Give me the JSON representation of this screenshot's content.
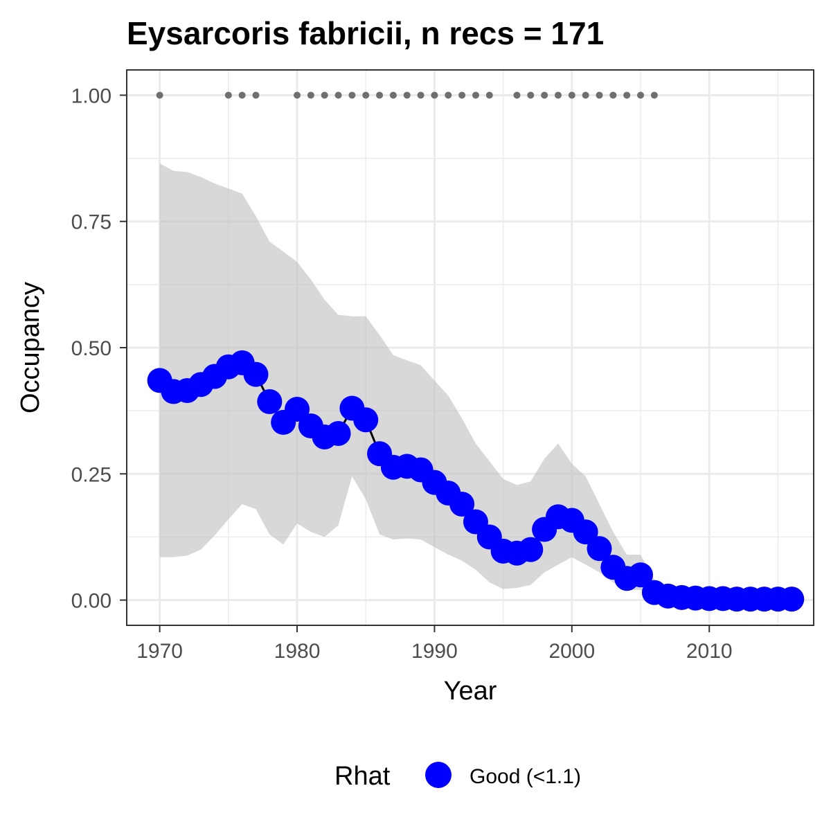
{
  "chart_data": {
    "type": "line",
    "title": "Eysarcoris fabricii, n recs = 171",
    "xlabel": "Year",
    "ylabel": "Occupancy",
    "xlim": [
      1967.6,
      2017.6
    ],
    "ylim": [
      -0.05,
      1.05
    ],
    "x_ticks": [
      1970,
      1980,
      1990,
      2000,
      2010
    ],
    "y_ticks": [
      0.0,
      0.25,
      0.5,
      0.75,
      1.0
    ],
    "y_tick_labels": [
      "0.00",
      "0.25",
      "0.50",
      "0.75",
      "1.00"
    ],
    "grid": true,
    "legend_position": "bottom",
    "colors": {
      "points": "#0000ff",
      "line": "#000000",
      "ribbon": "#bebebe",
      "records": "#6f6f6f",
      "grid": "#ebebeb",
      "border": "#333333"
    },
    "legend": {
      "title": "Rhat",
      "entries": [
        {
          "label": "Good (<1.1)",
          "color": "#0000ff"
        }
      ]
    },
    "years": [
      1970,
      1971,
      1972,
      1973,
      1974,
      1975,
      1976,
      1977,
      1978,
      1979,
      1980,
      1981,
      1982,
      1983,
      1984,
      1985,
      1986,
      1987,
      1988,
      1989,
      1990,
      1991,
      1992,
      1993,
      1994,
      1995,
      1996,
      1997,
      1998,
      1999,
      2000,
      2001,
      2002,
      2003,
      2004,
      2005,
      2006,
      2007,
      2008,
      2009,
      2010,
      2011,
      2012,
      2013,
      2014,
      2015,
      2016
    ],
    "series": [
      {
        "name": "Occupancy",
        "values": [
          0.435,
          0.413,
          0.415,
          0.427,
          0.443,
          0.462,
          0.47,
          0.447,
          0.393,
          0.352,
          0.378,
          0.345,
          0.323,
          0.33,
          0.38,
          0.357,
          0.29,
          0.263,
          0.265,
          0.258,
          0.233,
          0.212,
          0.19,
          0.155,
          0.125,
          0.097,
          0.093,
          0.1,
          0.14,
          0.165,
          0.158,
          0.135,
          0.102,
          0.065,
          0.043,
          0.05,
          0.015,
          0.008,
          0.005,
          0.004,
          0.003,
          0.003,
          0.002,
          0.002,
          0.002,
          0.002,
          0.002
        ]
      }
    ],
    "ci_upper": [
      0.865,
      0.85,
      0.848,
      0.838,
      0.825,
      0.815,
      0.805,
      0.76,
      0.71,
      0.69,
      0.67,
      0.635,
      0.595,
      0.565,
      0.562,
      0.562,
      0.525,
      0.485,
      0.475,
      0.465,
      0.435,
      0.405,
      0.36,
      0.31,
      0.275,
      0.24,
      0.228,
      0.235,
      0.28,
      0.31,
      0.27,
      0.245,
      0.19,
      0.135,
      0.09,
      0.09,
      0.04,
      0.025,
      0.02,
      0.018,
      0.015,
      0.015,
      0.013,
      0.012,
      0.012,
      0.012,
      0.012
    ],
    "ci_lower": [
      0.085,
      0.085,
      0.088,
      0.1,
      0.128,
      0.16,
      0.19,
      0.18,
      0.13,
      0.11,
      0.152,
      0.135,
      0.125,
      0.148,
      0.245,
      0.2,
      0.13,
      0.12,
      0.122,
      0.12,
      0.105,
      0.09,
      0.078,
      0.06,
      0.035,
      0.022,
      0.024,
      0.03,
      0.055,
      0.07,
      0.085,
      0.07,
      0.055,
      0.035,
      0.02,
      0.02,
      0.003,
      0.0,
      0.0,
      0.0,
      0.0,
      0.0,
      0.0,
      0.0,
      0.0,
      0.0,
      0.0
    ],
    "record_years": [
      1970,
      1975,
      1976,
      1977,
      1980,
      1981,
      1982,
      1983,
      1984,
      1985,
      1986,
      1987,
      1988,
      1989,
      1990,
      1991,
      1992,
      1993,
      1994,
      1996,
      1997,
      1998,
      1999,
      2000,
      2001,
      2002,
      2003,
      2004,
      2005,
      2006
    ],
    "record_value": 1.0
  }
}
